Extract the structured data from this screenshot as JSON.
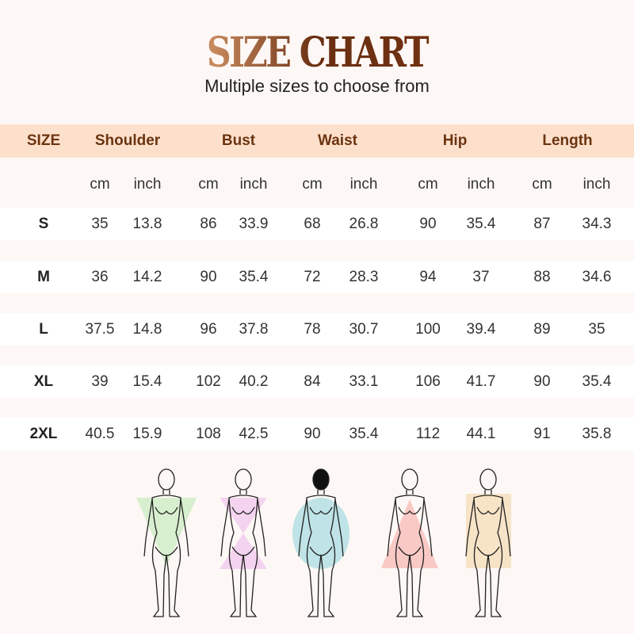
{
  "title": "SIZE CHART",
  "subtitle": "Multiple sizes to choose from",
  "headers": [
    "SIZE",
    "Shoulder",
    "Bust",
    "Waist",
    "Hip",
    "Length"
  ],
  "units": [
    "cm",
    "inch",
    "cm",
    "inch",
    "cm",
    "inch",
    "cm",
    "inch",
    "cm",
    "inch"
  ],
  "rows": [
    {
      "size": "S",
      "values": [
        "35",
        "13.8",
        "86",
        "33.9",
        "68",
        "26.8",
        "90",
        "35.4",
        "87",
        "34.3"
      ]
    },
    {
      "size": "M",
      "values": [
        "36",
        "14.2",
        "90",
        "35.4",
        "72",
        "28.3",
        "94",
        "37",
        "88",
        "34.6"
      ]
    },
    {
      "size": "L",
      "values": [
        "37.5",
        "14.8",
        "96",
        "37.8",
        "78",
        "30.7",
        "100",
        "39.4",
        "89",
        "35"
      ]
    },
    {
      "size": "XL",
      "values": [
        "39",
        "15.4",
        "102",
        "40.2",
        "84",
        "33.1",
        "106",
        "41.7",
        "90",
        "35.4"
      ]
    },
    {
      "size": "2XL",
      "values": [
        "40.5",
        "15.9",
        "108",
        "42.5",
        "90",
        "35.4",
        "112",
        "44.1",
        "91",
        "35.8"
      ]
    }
  ],
  "body_types": [
    {
      "shape": "inverted-triangle",
      "color": "#d8efcf"
    },
    {
      "shape": "hourglass",
      "color": "#f3d3ef"
    },
    {
      "shape": "oval",
      "color": "#bfe3e6"
    },
    {
      "shape": "triangle",
      "color": "#f9c9c6"
    },
    {
      "shape": "rectangle",
      "color": "#f7e3c6"
    }
  ]
}
